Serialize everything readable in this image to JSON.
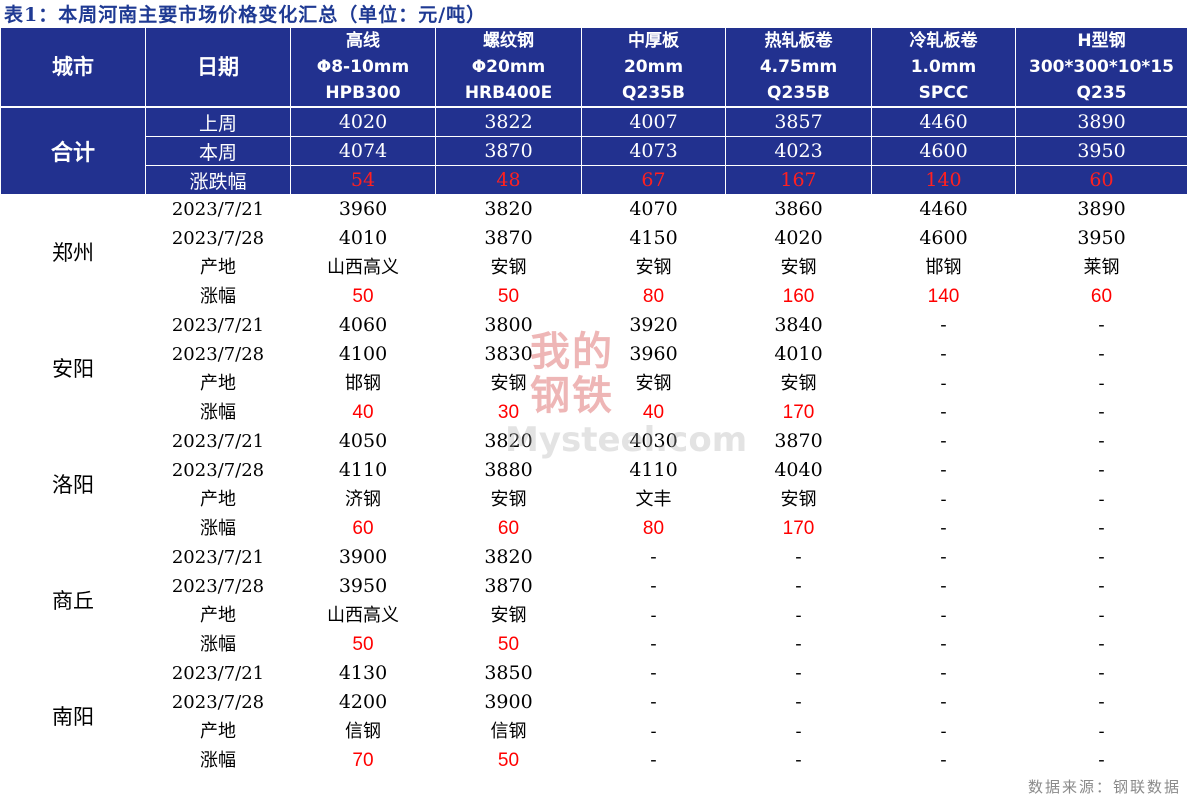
{
  "title": "表1：本周河南主要市场价格变化汇总（单位：元/吨）",
  "header": {
    "city": "城市",
    "date": "日期",
    "products": [
      {
        "name": "高线",
        "spec": "Φ8-10mm",
        "grade": "HPB300"
      },
      {
        "name": "螺纹钢",
        "spec": "Φ20mm",
        "grade": "HRB400E"
      },
      {
        "name": "中厚板",
        "spec": "20mm",
        "grade": "Q235B"
      },
      {
        "name": "热轧板卷",
        "spec": "4.75mm",
        "grade": "Q235B"
      },
      {
        "name": "冷轧板卷",
        "spec": "1.0mm",
        "grade": "SPCC"
      },
      {
        "name": "H型钢",
        "spec": "300*300*10*15",
        "grade": "Q235"
      }
    ]
  },
  "summary": {
    "city": "合计",
    "rows": [
      {
        "label": "上周",
        "values": [
          "4020",
          "3822",
          "4007",
          "3857",
          "4460",
          "3890"
        ]
      },
      {
        "label": "本周",
        "values": [
          "4074",
          "3870",
          "4073",
          "4023",
          "4600",
          "3950"
        ]
      },
      {
        "label": "涨跌幅",
        "values": [
          "54",
          "48",
          "67",
          "167",
          "140",
          "60"
        ]
      }
    ]
  },
  "cities": [
    {
      "name": "郑州",
      "rows": [
        {
          "label": "2023/7/21",
          "values": [
            "3960",
            "3820",
            "4070",
            "3860",
            "4460",
            "3890"
          ]
        },
        {
          "label": "2023/7/28",
          "values": [
            "4010",
            "3870",
            "4150",
            "4020",
            "4600",
            "3950"
          ]
        },
        {
          "label": "产地",
          "values": [
            "山西高义",
            "安钢",
            "安钢",
            "安钢",
            "邯钢",
            "莱钢"
          ]
        },
        {
          "label": "涨幅",
          "values": [
            "50",
            "50",
            "80",
            "160",
            "140",
            "60"
          ]
        }
      ]
    },
    {
      "name": "安阳",
      "rows": [
        {
          "label": "2023/7/21",
          "values": [
            "4060",
            "3800",
            "3920",
            "3840",
            "-",
            "-"
          ]
        },
        {
          "label": "2023/7/28",
          "values": [
            "4100",
            "3830",
            "3960",
            "4010",
            "-",
            "-"
          ]
        },
        {
          "label": "产地",
          "values": [
            "邯钢",
            "安钢",
            "安钢",
            "安钢",
            "-",
            "-"
          ]
        },
        {
          "label": "涨幅",
          "values": [
            "40",
            "30",
            "40",
            "170",
            "-",
            "-"
          ]
        }
      ]
    },
    {
      "name": "洛阳",
      "rows": [
        {
          "label": "2023/7/21",
          "values": [
            "4050",
            "3820",
            "4030",
            "3870",
            "-",
            "-"
          ]
        },
        {
          "label": "2023/7/28",
          "values": [
            "4110",
            "3880",
            "4110",
            "4040",
            "-",
            "-"
          ]
        },
        {
          "label": "产地",
          "values": [
            "济钢",
            "安钢",
            "文丰",
            "安钢",
            "-",
            "-"
          ]
        },
        {
          "label": "涨幅",
          "values": [
            "60",
            "60",
            "80",
            "170",
            "-",
            "-"
          ]
        }
      ]
    },
    {
      "name": "商丘",
      "rows": [
        {
          "label": "2023/7/21",
          "values": [
            "3900",
            "3820",
            "-",
            "-",
            "-",
            "-"
          ]
        },
        {
          "label": "2023/7/28",
          "values": [
            "3950",
            "3870",
            "-",
            "-",
            "-",
            "-"
          ]
        },
        {
          "label": "产地",
          "values": [
            "山西高义",
            "安钢",
            "-",
            "-",
            "-",
            "-"
          ]
        },
        {
          "label": "涨幅",
          "values": [
            "50",
            "50",
            "-",
            "-",
            "-",
            "-"
          ]
        }
      ]
    },
    {
      "name": "南阳",
      "rows": [
        {
          "label": "2023/7/21",
          "values": [
            "4130",
            "3850",
            "-",
            "-",
            "-",
            "-"
          ]
        },
        {
          "label": "2023/7/28",
          "values": [
            "4200",
            "3900",
            "-",
            "-",
            "-",
            "-"
          ]
        },
        {
          "label": "产地",
          "values": [
            "信钢",
            "信钢",
            "-",
            "-",
            "-",
            "-"
          ]
        },
        {
          "label": "涨幅",
          "values": [
            "70",
            "50",
            "-",
            "-",
            "-",
            "-"
          ]
        }
      ]
    }
  ],
  "watermark": {
    "cn": "我的钢铁",
    "en": "Mysteel.com"
  },
  "source": "数据来源：钢联数据",
  "colors": {
    "header_bg": "#22318f",
    "title": "#1f3a93",
    "positive": "#ff0000"
  }
}
